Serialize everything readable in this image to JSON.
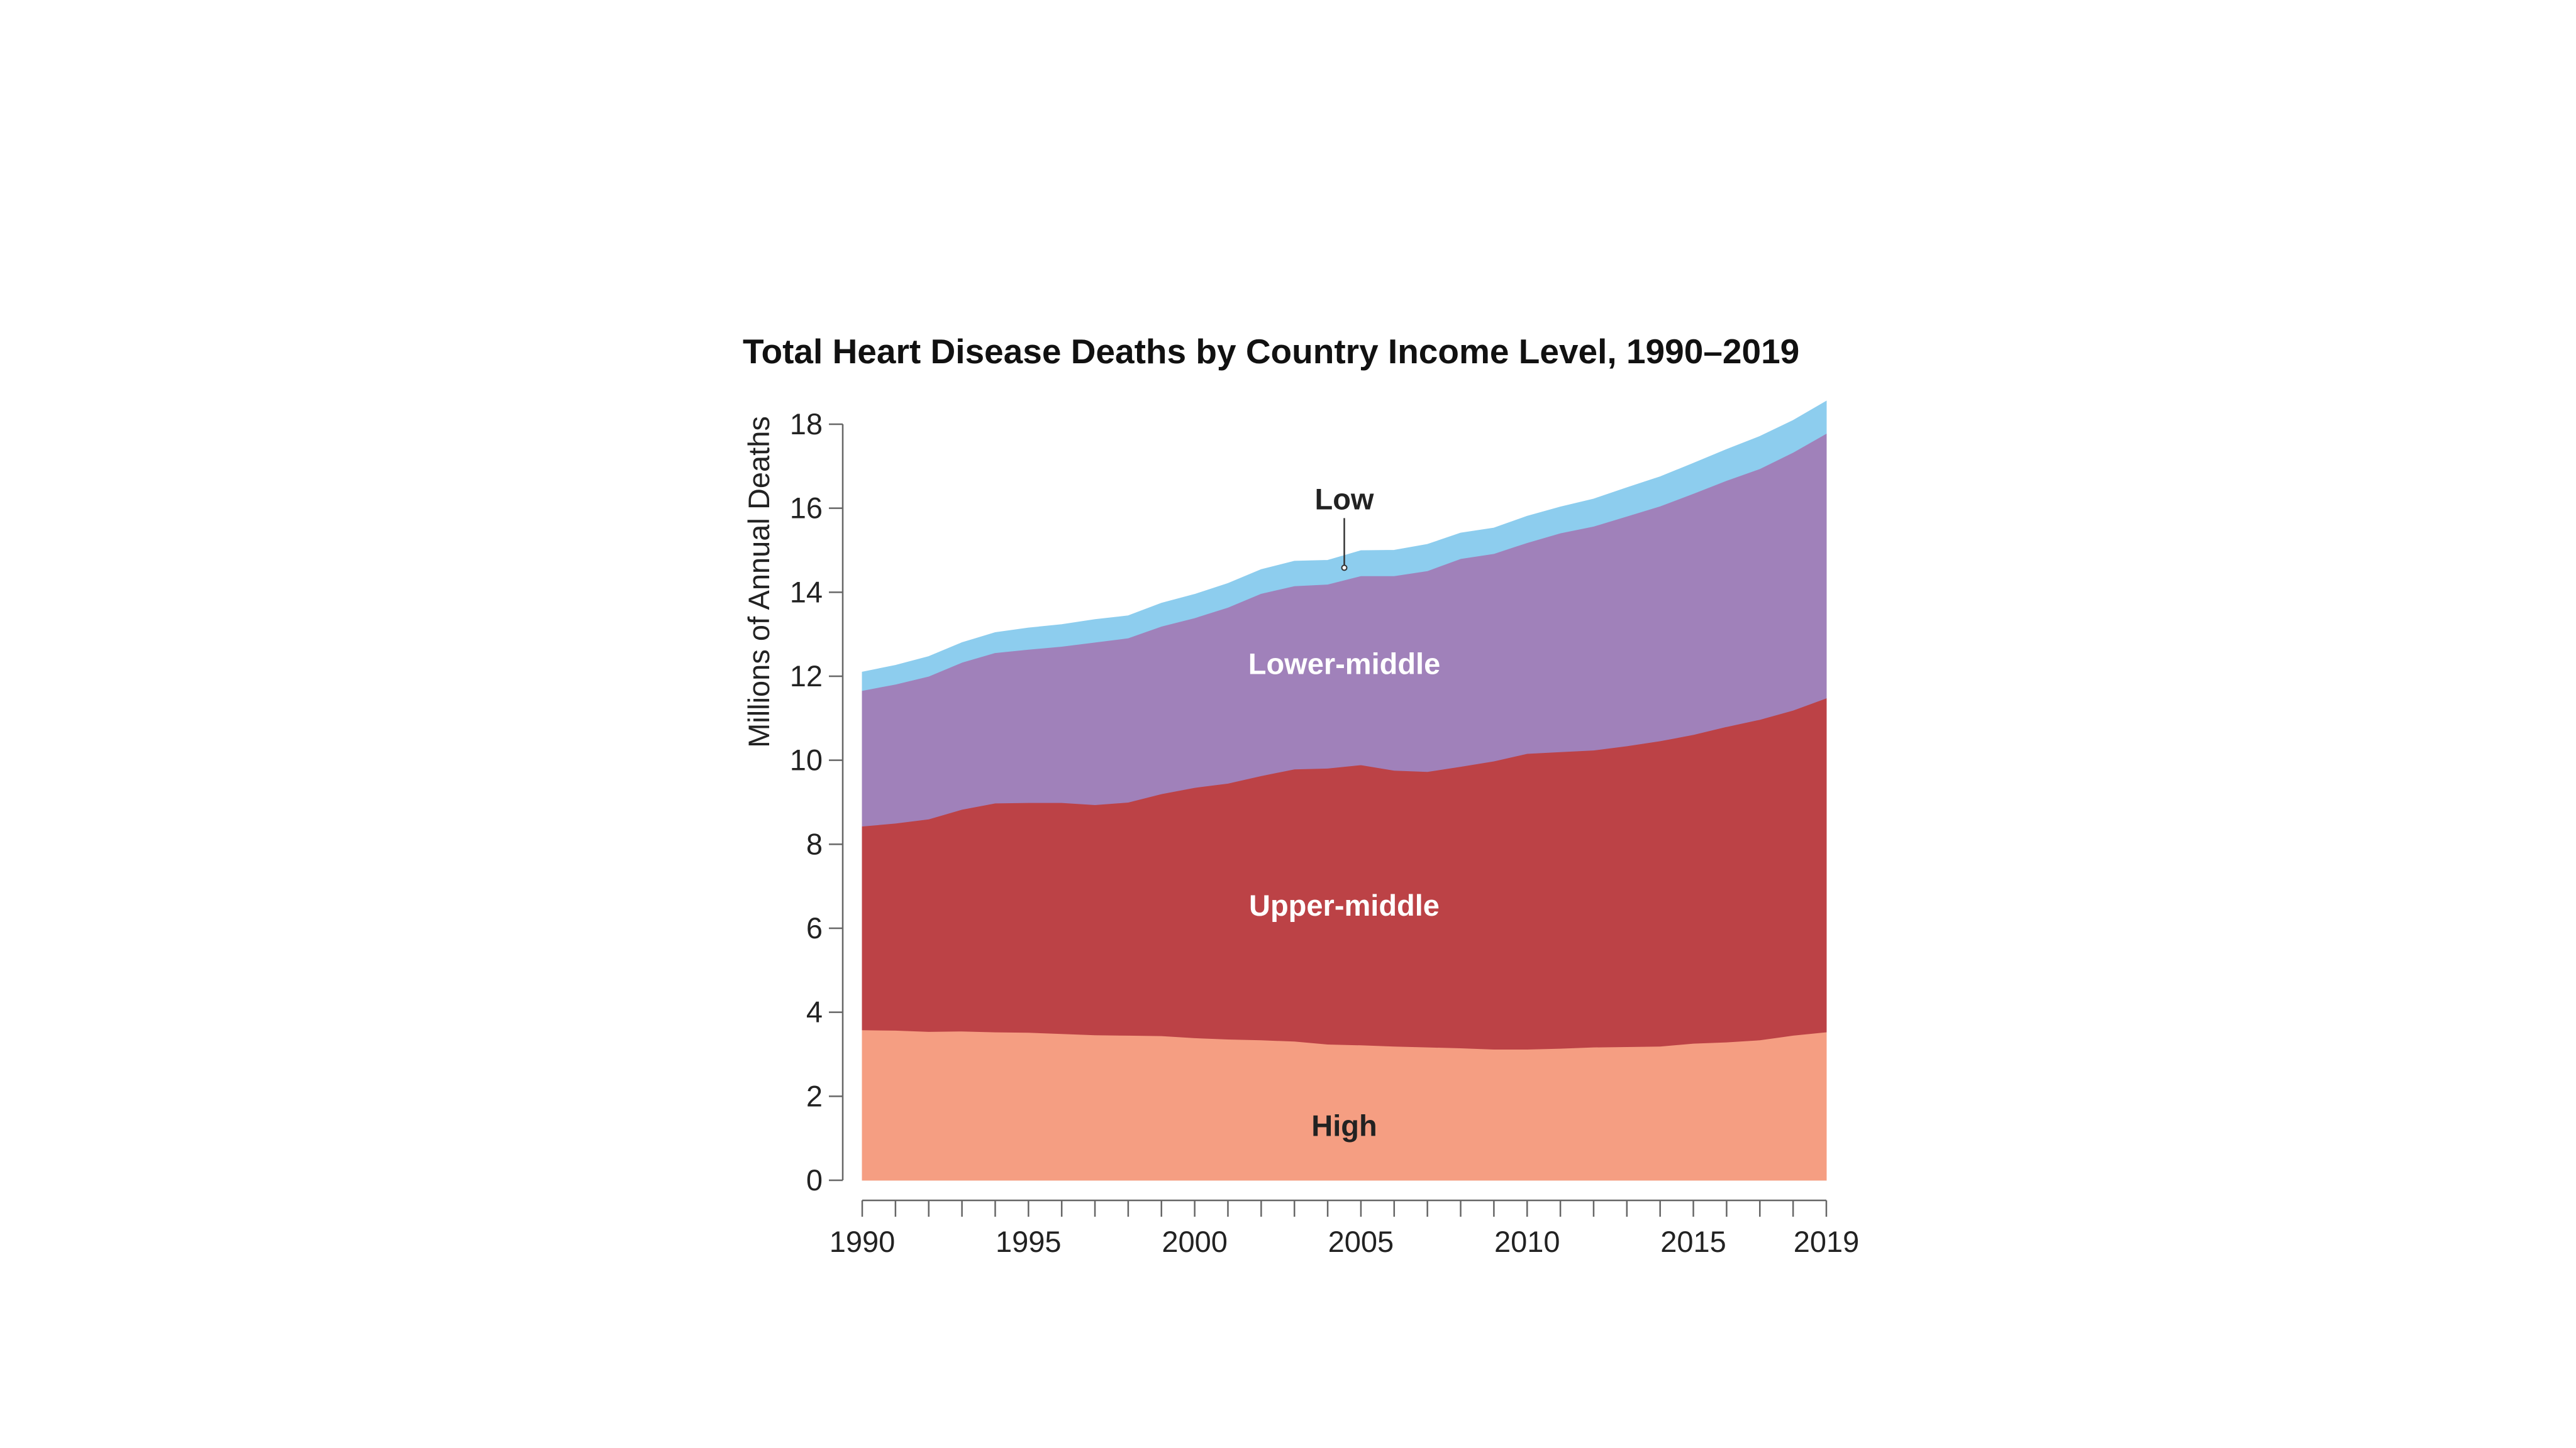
{
  "chart_data": {
    "type": "area",
    "stacked": true,
    "title": "Total Heart Disease Deaths by Country Income Level, 1990–2019",
    "xlabel": "",
    "ylabel": "Millions of Annual Deaths",
    "xlim": [
      1990,
      2019
    ],
    "ylim": [
      0,
      18
    ],
    "xticks": [
      1990,
      1995,
      2000,
      2005,
      2010,
      2015,
      2019
    ],
    "yticks": [
      0,
      2,
      4,
      6,
      8,
      10,
      12,
      14,
      16,
      18
    ],
    "grid": false,
    "legend": "inline labels",
    "x": [
      1990,
      1991,
      1992,
      1993,
      1994,
      1995,
      1996,
      1997,
      1998,
      1999,
      2000,
      2001,
      2002,
      2003,
      2004,
      2005,
      2006,
      2007,
      2008,
      2009,
      2010,
      2011,
      2012,
      2013,
      2014,
      2015,
      2016,
      2017,
      2018,
      2019
    ],
    "series": [
      {
        "name": "High",
        "color": "#F59E82",
        "label_color": "#222222",
        "values": [
          3.58,
          3.57,
          3.54,
          3.55,
          3.53,
          3.52,
          3.49,
          3.46,
          3.45,
          3.44,
          3.39,
          3.36,
          3.34,
          3.31,
          3.24,
          3.22,
          3.19,
          3.17,
          3.15,
          3.12,
          3.12,
          3.14,
          3.17,
          3.18,
          3.19,
          3.26,
          3.29,
          3.34,
          3.45,
          3.53
        ]
      },
      {
        "name": "Upper-middle",
        "color": "#BC4246",
        "label_color": "#FFFFFF",
        "values": [
          4.85,
          4.93,
          5.06,
          5.28,
          5.45,
          5.47,
          5.5,
          5.48,
          5.55,
          5.76,
          5.96,
          6.09,
          6.29,
          6.48,
          6.57,
          6.67,
          6.57,
          6.56,
          6.7,
          6.86,
          7.04,
          7.06,
          7.07,
          7.16,
          7.27,
          7.35,
          7.51,
          7.63,
          7.74,
          7.95
        ]
      },
      {
        "name": "Lower-middle",
        "color": "#A081BA",
        "label_color": "#FFFFFF",
        "values": [
          3.23,
          3.31,
          3.4,
          3.5,
          3.58,
          3.65,
          3.72,
          3.87,
          3.91,
          3.99,
          4.04,
          4.19,
          4.34,
          4.36,
          4.38,
          4.5,
          4.63,
          4.78,
          4.95,
          4.94,
          5.02,
          5.21,
          5.33,
          5.47,
          5.59,
          5.74,
          5.86,
          5.97,
          6.14,
          6.3
        ]
      },
      {
        "name": "Low",
        "color": "#8DCDEE",
        "label_color": "#222222",
        "values": [
          0.44,
          0.45,
          0.47,
          0.47,
          0.48,
          0.51,
          0.52,
          0.54,
          0.53,
          0.55,
          0.56,
          0.57,
          0.57,
          0.59,
          0.57,
          0.6,
          0.61,
          0.63,
          0.61,
          0.61,
          0.63,
          0.62,
          0.65,
          0.68,
          0.7,
          0.72,
          0.74,
          0.77,
          0.76,
          0.77
        ]
      }
    ]
  }
}
